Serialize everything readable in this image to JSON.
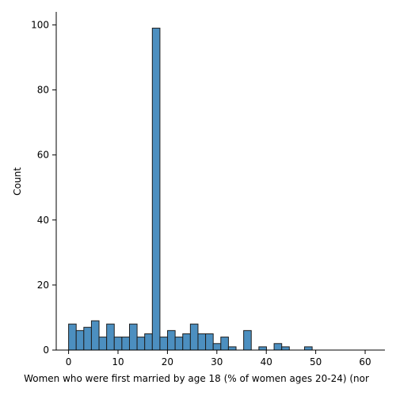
{
  "chart_data": {
    "type": "bar",
    "subtype": "histogram",
    "xlabel": "Women who were first married by age 18 (% of women ages 20-24) (nor",
    "ylabel": "Count",
    "xlim": [
      -2.5,
      64
    ],
    "ylim": [
      0,
      104
    ],
    "x_ticks": [
      0,
      10,
      20,
      30,
      40,
      50,
      60
    ],
    "y_ticks": [
      0,
      20,
      40,
      60,
      80,
      100
    ],
    "bin_width": 1.54,
    "bins": [
      {
        "x0": 0.0,
        "count": 8
      },
      {
        "x0": 1.54,
        "count": 6
      },
      {
        "x0": 3.08,
        "count": 7
      },
      {
        "x0": 4.62,
        "count": 9
      },
      {
        "x0": 6.16,
        "count": 4
      },
      {
        "x0": 7.7,
        "count": 8
      },
      {
        "x0": 9.24,
        "count": 4
      },
      {
        "x0": 10.78,
        "count": 4
      },
      {
        "x0": 12.32,
        "count": 8
      },
      {
        "x0": 13.86,
        "count": 4
      },
      {
        "x0": 15.4,
        "count": 5
      },
      {
        "x0": 16.94,
        "count": 99
      },
      {
        "x0": 18.48,
        "count": 4
      },
      {
        "x0": 20.02,
        "count": 6
      },
      {
        "x0": 21.56,
        "count": 4
      },
      {
        "x0": 23.1,
        "count": 5
      },
      {
        "x0": 24.64,
        "count": 8
      },
      {
        "x0": 26.18,
        "count": 5
      },
      {
        "x0": 27.72,
        "count": 5
      },
      {
        "x0": 29.26,
        "count": 2
      },
      {
        "x0": 30.8,
        "count": 4
      },
      {
        "x0": 32.34,
        "count": 1
      },
      {
        "x0": 33.88,
        "count": 0
      },
      {
        "x0": 35.42,
        "count": 6
      },
      {
        "x0": 36.96,
        "count": 0
      },
      {
        "x0": 38.5,
        "count": 1
      },
      {
        "x0": 40.04,
        "count": 0
      },
      {
        "x0": 41.58,
        "count": 2
      },
      {
        "x0": 43.12,
        "count": 1
      },
      {
        "x0": 44.66,
        "count": 0
      },
      {
        "x0": 46.2,
        "count": 0
      },
      {
        "x0": 47.74,
        "count": 1
      }
    ],
    "bar_color": "#4c8fc0",
    "edge_color": "#1f1f1f",
    "grid": false,
    "legend": false
  }
}
